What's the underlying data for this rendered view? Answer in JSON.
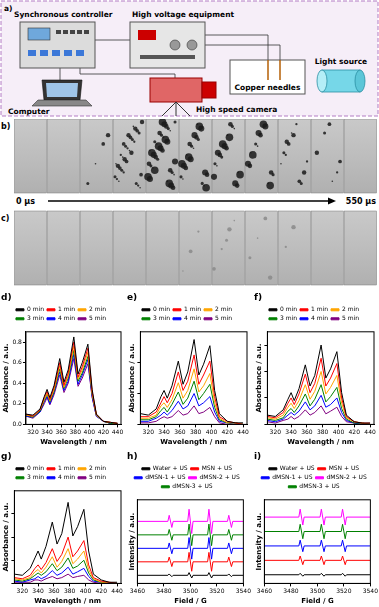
{
  "panel_a": {
    "label": "a)",
    "components": {
      "controller": "Synchronous controller",
      "high_voltage": "High voltage equipment",
      "computer": "Computer",
      "camera": "High speed camera",
      "needles": "Copper needles",
      "light": "Light source"
    }
  },
  "frames": {
    "start_label": "0 μs",
    "end_label": "550 μs",
    "rows": [
      {
        "label": "b)",
        "bubbles": [
          0,
          0,
          4,
          30,
          35,
          22,
          18,
          14,
          12,
          6,
          0
        ]
      },
      {
        "label": "c)",
        "bubbles": [
          0,
          0,
          0,
          0,
          0,
          3,
          5,
          4,
          2,
          0,
          0
        ]
      }
    ]
  },
  "chart_data": [
    {
      "type": "line",
      "title": "d)",
      "x_label": "Wavelength / nm",
      "y_label": "Absorbance / a.u.",
      "legend": "top",
      "x": [
        310,
        320,
        330,
        336,
        340,
        344,
        350,
        358,
        364,
        370,
        378,
        384,
        390,
        398,
        404,
        410,
        420,
        430,
        440
      ],
      "xlim": [
        310,
        445
      ],
      "xticks": [
        320,
        340,
        360,
        380,
        400,
        420,
        440
      ],
      "ylim": [
        0,
        0.9
      ],
      "yticks": [
        {
          "value": 0,
          "label": "0.0"
        },
        {
          "value": 0.2,
          "label": "0.2"
        },
        {
          "value": 0.4,
          "label": "0.4"
        },
        {
          "value": 0.6,
          "label": "0.6"
        },
        {
          "value": 0.8,
          "label": "0.8"
        }
      ],
      "series": [
        {
          "name": "0 min",
          "color": "#000000",
          "values": [
            0.1,
            0.09,
            0.15,
            0.27,
            0.34,
            0.26,
            0.38,
            0.64,
            0.41,
            0.53,
            0.85,
            0.49,
            0.6,
            0.78,
            0.34,
            0.1,
            0.03,
            0.02,
            0.01
          ]
        },
        {
          "name": "1 min",
          "color": "#ff0000",
          "values": [
            0.1,
            0.08,
            0.14,
            0.26,
            0.32,
            0.24,
            0.36,
            0.6,
            0.38,
            0.5,
            0.8,
            0.46,
            0.56,
            0.74,
            0.32,
            0.1,
            0.03,
            0.02,
            0.01
          ]
        },
        {
          "name": "2 min",
          "color": "#ffa500",
          "values": [
            0.09,
            0.08,
            0.14,
            0.24,
            0.3,
            0.23,
            0.34,
            0.57,
            0.36,
            0.47,
            0.76,
            0.44,
            0.53,
            0.7,
            0.3,
            0.09,
            0.03,
            0.02,
            0.01
          ]
        },
        {
          "name": "3 min",
          "color": "#008000",
          "values": [
            0.09,
            0.07,
            0.13,
            0.23,
            0.29,
            0.22,
            0.32,
            0.54,
            0.35,
            0.45,
            0.72,
            0.42,
            0.5,
            0.66,
            0.29,
            0.09,
            0.03,
            0.01,
            0.01
          ]
        },
        {
          "name": "4 min",
          "color": "#0000ff",
          "values": [
            0.08,
            0.07,
            0.12,
            0.22,
            0.27,
            0.2,
            0.31,
            0.51,
            0.33,
            0.42,
            0.68,
            0.39,
            0.48,
            0.63,
            0.27,
            0.08,
            0.03,
            0.01,
            0.01
          ]
        },
        {
          "name": "5 min",
          "color": "#800080",
          "values": [
            0.08,
            0.06,
            0.12,
            0.2,
            0.26,
            0.19,
            0.29,
            0.48,
            0.31,
            0.4,
            0.64,
            0.37,
            0.45,
            0.59,
            0.26,
            0.08,
            0.03,
            0.01,
            0.01
          ]
        }
      ]
    },
    {
      "type": "line",
      "title": "e)",
      "x_label": "Wavelength / nm",
      "y_label": "Absorbance / a.u.",
      "legend": "top",
      "tick_labels": "x",
      "x": [
        310,
        320,
        330,
        336,
        340,
        344,
        350,
        358,
        364,
        370,
        378,
        384,
        390,
        398,
        404,
        410,
        420,
        430,
        440
      ],
      "xlim": [
        310,
        445
      ],
      "xticks": [
        320,
        340,
        360,
        380,
        400,
        420,
        440
      ],
      "ylim": [
        0,
        0.6
      ],
      "yticks": [
        0,
        0.2,
        0.4
      ],
      "series": [
        {
          "name": "0 min",
          "color": "#000000",
          "values": [
            0.07,
            0.06,
            0.1,
            0.18,
            0.22,
            0.17,
            0.25,
            0.41,
            0.26,
            0.34,
            0.55,
            0.32,
            0.39,
            0.51,
            0.22,
            0.07,
            0.02,
            0.01,
            0.01
          ]
        },
        {
          "name": "1 min",
          "color": "#ff0000",
          "values": [
            0.05,
            0.05,
            0.08,
            0.14,
            0.18,
            0.14,
            0.2,
            0.34,
            0.22,
            0.28,
            0.45,
            0.26,
            0.32,
            0.41,
            0.18,
            0.05,
            0.02,
            0.01,
            0.0
          ]
        },
        {
          "name": "2 min",
          "color": "#ffa500",
          "values": [
            0.04,
            0.04,
            0.06,
            0.12,
            0.14,
            0.11,
            0.16,
            0.27,
            0.17,
            0.22,
            0.36,
            0.21,
            0.25,
            0.33,
            0.14,
            0.04,
            0.01,
            0.01,
            0.0
          ]
        },
        {
          "name": "3 min",
          "color": "#008000",
          "values": [
            0.03,
            0.03,
            0.05,
            0.09,
            0.11,
            0.08,
            0.13,
            0.21,
            0.13,
            0.17,
            0.28,
            0.16,
            0.2,
            0.26,
            0.11,
            0.03,
            0.01,
            0.01,
            0.0
          ]
        },
        {
          "name": "4 min",
          "color": "#0000ff",
          "values": [
            0.02,
            0.02,
            0.04,
            0.06,
            0.08,
            0.06,
            0.09,
            0.15,
            0.1,
            0.12,
            0.2,
            0.12,
            0.14,
            0.18,
            0.08,
            0.02,
            0.01,
            0.0,
            0.0
          ]
        },
        {
          "name": "5 min",
          "color": "#800080",
          "values": [
            0.01,
            0.01,
            0.02,
            0.04,
            0.05,
            0.04,
            0.05,
            0.09,
            0.06,
            0.07,
            0.12,
            0.07,
            0.08,
            0.11,
            0.05,
            0.01,
            0.0,
            0.0,
            0.0
          ]
        }
      ]
    },
    {
      "type": "line",
      "title": "f)",
      "x_label": "Wavelength / nm",
      "y_label": "Absorbance / a.u.",
      "legend": "top",
      "tick_labels": "x",
      "x": [
        310,
        320,
        330,
        336,
        340,
        344,
        350,
        358,
        364,
        370,
        378,
        384,
        390,
        398,
        404,
        410,
        420,
        430,
        440
      ],
      "xlim": [
        310,
        445
      ],
      "xticks": [
        320,
        340,
        360,
        380,
        400,
        420,
        440
      ],
      "ylim": [
        0,
        0.7
      ],
      "yticks": [
        0,
        0.2,
        0.4,
        0.6
      ],
      "series": [
        {
          "name": "0 min",
          "color": "#000000",
          "values": [
            0.07,
            0.06,
            0.11,
            0.19,
            0.24,
            0.18,
            0.27,
            0.45,
            0.29,
            0.37,
            0.6,
            0.35,
            0.42,
            0.55,
            0.24,
            0.07,
            0.02,
            0.01,
            0.01
          ]
        },
        {
          "name": "1 min",
          "color": "#ff0000",
          "values": [
            0.06,
            0.05,
            0.09,
            0.16,
            0.2,
            0.15,
            0.23,
            0.38,
            0.24,
            0.31,
            0.5,
            0.29,
            0.35,
            0.46,
            0.2,
            0.06,
            0.02,
            0.01,
            0.01
          ]
        },
        {
          "name": "2 min",
          "color": "#ffa500",
          "values": [
            0.05,
            0.04,
            0.07,
            0.13,
            0.16,
            0.12,
            0.18,
            0.3,
            0.19,
            0.25,
            0.4,
            0.23,
            0.28,
            0.37,
            0.16,
            0.05,
            0.02,
            0.01,
            0.0
          ]
        },
        {
          "name": "3 min",
          "color": "#008000",
          "values": [
            0.04,
            0.03,
            0.05,
            0.1,
            0.12,
            0.09,
            0.14,
            0.23,
            0.14,
            0.19,
            0.3,
            0.17,
            0.21,
            0.28,
            0.12,
            0.04,
            0.01,
            0.01,
            0.0
          ]
        },
        {
          "name": "4 min",
          "color": "#0000ff",
          "values": [
            0.03,
            0.02,
            0.04,
            0.07,
            0.09,
            0.07,
            0.1,
            0.17,
            0.11,
            0.14,
            0.22,
            0.13,
            0.15,
            0.2,
            0.09,
            0.03,
            0.01,
            0.0,
            0.0
          ]
        },
        {
          "name": "5 min",
          "color": "#800080",
          "values": [
            0.02,
            0.01,
            0.03,
            0.04,
            0.06,
            0.04,
            0.06,
            0.11,
            0.07,
            0.09,
            0.14,
            0.08,
            0.1,
            0.13,
            0.06,
            0.02,
            0.01,
            0.0,
            0.0
          ]
        }
      ]
    },
    {
      "type": "line",
      "title": "g)",
      "x_label": "Wavelength / nm",
      "y_label": "Absorbance / a.u.",
      "legend": "top",
      "tick_labels": "x",
      "x": [
        310,
        320,
        330,
        336,
        340,
        344,
        350,
        358,
        364,
        370,
        378,
        384,
        390,
        398,
        404,
        410,
        420,
        430,
        440
      ],
      "xlim": [
        310,
        445
      ],
      "xticks": [
        320,
        340,
        360,
        380,
        400,
        420,
        440
      ],
      "ylim": [
        0,
        0.8
      ],
      "yticks": [
        0,
        0.2,
        0.4,
        0.6
      ],
      "series": [
        {
          "name": "0 min",
          "color": "#000000",
          "values": [
            0.08,
            0.07,
            0.13,
            0.22,
            0.28,
            0.21,
            0.32,
            0.53,
            0.34,
            0.43,
            0.7,
            0.41,
            0.49,
            0.64,
            0.28,
            0.08,
            0.03,
            0.01,
            0.01
          ]
        },
        {
          "name": "1 min",
          "color": "#ff0000",
          "values": [
            0.05,
            0.04,
            0.07,
            0.13,
            0.16,
            0.12,
            0.18,
            0.3,
            0.19,
            0.25,
            0.4,
            0.23,
            0.28,
            0.37,
            0.16,
            0.05,
            0.02,
            0.01,
            0.0
          ]
        },
        {
          "name": "2 min",
          "color": "#ffa500",
          "values": [
            0.04,
            0.03,
            0.05,
            0.1,
            0.12,
            0.09,
            0.14,
            0.23,
            0.14,
            0.19,
            0.3,
            0.17,
            0.21,
            0.28,
            0.12,
            0.04,
            0.01,
            0.01,
            0.0
          ]
        },
        {
          "name": "3 min",
          "color": "#008000",
          "values": [
            0.03,
            0.02,
            0.04,
            0.07,
            0.09,
            0.07,
            0.1,
            0.17,
            0.11,
            0.14,
            0.22,
            0.13,
            0.15,
            0.2,
            0.09,
            0.03,
            0.01,
            0.0,
            0.0
          ]
        },
        {
          "name": "4 min",
          "color": "#0000ff",
          "values": [
            0.02,
            0.01,
            0.03,
            0.04,
            0.06,
            0.04,
            0.06,
            0.11,
            0.07,
            0.09,
            0.14,
            0.08,
            0.1,
            0.13,
            0.06,
            0.02,
            0.01,
            0.0,
            0.0
          ]
        },
        {
          "name": "5 min",
          "color": "#800080",
          "values": [
            0.01,
            0.01,
            0.01,
            0.03,
            0.03,
            0.02,
            0.04,
            0.06,
            0.04,
            0.05,
            0.08,
            0.05,
            0.06,
            0.07,
            0.03,
            0.01,
            0.0,
            0.0,
            0.0
          ]
        }
      ]
    },
    {
      "type": "line",
      "title": "h)",
      "x_label": "Field / G",
      "y_label": "Intensity / a.u.",
      "legend": "top",
      "tick_labels": "x",
      "x": [
        3460,
        3483,
        3484,
        3486,
        3487,
        3498,
        3499,
        3501,
        3502,
        3513,
        3514,
        3516,
        3517,
        3528,
        3529,
        3531,
        3532,
        3540
      ],
      "xlim": [
        3460,
        3540
      ],
      "xticks": [
        3460,
        3480,
        3500,
        3520,
        3540
      ],
      "ylim": [
        -0.6,
        5.6
      ],
      "series": [
        {
          "name": "Water + US",
          "color": "#000000",
          "values": [
            0,
            0,
            0.1,
            -0.1,
            0,
            0,
            0.2,
            -0.2,
            0,
            0,
            0.2,
            -0.2,
            0,
            0,
            0.1,
            -0.1,
            0,
            0
          ]
        },
        {
          "name": "MSN + US",
          "color": "#ff0000",
          "values": [
            1,
            1,
            1.35,
            0.65,
            1,
            1,
            1.7,
            0.3,
            1,
            1,
            1.7,
            0.3,
            1,
            1,
            1.35,
            0.65,
            1,
            1
          ]
        },
        {
          "name": "dMSN-1 + US",
          "color": "#0000ff",
          "values": [
            2,
            2,
            2.4,
            1.6,
            2,
            2,
            2.8,
            1.2,
            2,
            2,
            2.8,
            1.2,
            2,
            2,
            2.4,
            1.6,
            2,
            2
          ]
        },
        {
          "name": "dMSN-2 + US",
          "color": "#ff00ff",
          "values": [
            4,
            4,
            4.45,
            3.55,
            4,
            4,
            4.9,
            3.1,
            4,
            4,
            4.9,
            3.1,
            4,
            4,
            4.45,
            3.55,
            4,
            4
          ]
        },
        {
          "name": "dMSN-3 + US",
          "color": "#008000",
          "values": [
            3,
            3,
            3.4,
            2.6,
            3,
            3,
            3.8,
            2.2,
            3,
            3,
            3.8,
            2.2,
            3,
            3,
            3.4,
            2.6,
            3,
            3
          ]
        }
      ]
    },
    {
      "type": "line",
      "title": "i)",
      "x_label": "Field / G",
      "y_label": "Intensity / a.u.",
      "legend": "top",
      "tick_labels": "x",
      "x": [
        3460,
        3486,
        3487,
        3489,
        3490,
        3502,
        3503,
        3505,
        3506,
        3518,
        3519,
        3521,
        3522,
        3540
      ],
      "xlim": [
        3460,
        3540
      ],
      "xticks": [
        3460,
        3480,
        3500,
        3520,
        3540
      ],
      "ylim": [
        -0.6,
        5.2
      ],
      "series": [
        {
          "name": "Water + US",
          "color": "#000000",
          "values": [
            0,
            0,
            0.1,
            -0.1,
            0,
            0,
            0.1,
            -0.1,
            0,
            0,
            0.1,
            -0.1,
            0,
            0
          ]
        },
        {
          "name": "MSN + US",
          "color": "#ff0000",
          "values": [
            1,
            1,
            1.3,
            0.7,
            1,
            1,
            1.3,
            0.7,
            1,
            1,
            1.3,
            0.7,
            1,
            1
          ]
        },
        {
          "name": "dMSN-1 + US",
          "color": "#0000ff",
          "values": [
            2,
            2,
            2.4,
            1.6,
            2,
            2,
            2.4,
            1.6,
            2,
            2,
            2.4,
            1.6,
            2,
            2
          ]
        },
        {
          "name": "dMSN-2 + US",
          "color": "#ff00ff",
          "values": [
            4,
            4,
            4.55,
            3.45,
            4,
            4,
            4.55,
            3.45,
            4,
            4,
            4.55,
            3.45,
            4,
            4
          ]
        },
        {
          "name": "dMSN-3 + US",
          "color": "#008000",
          "values": [
            3,
            3,
            3.5,
            2.5,
            3,
            3,
            3.5,
            2.5,
            3,
            3,
            3.5,
            2.5,
            3,
            3
          ]
        }
      ]
    }
  ]
}
